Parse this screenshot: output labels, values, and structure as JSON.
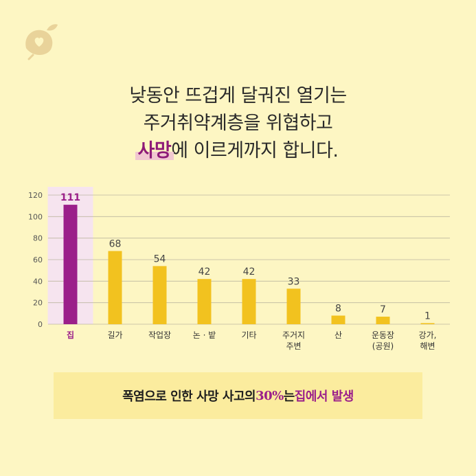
{
  "headline": {
    "line1": "낮동안 뜨겁게 달궈진 열기는",
    "line2": "주거취약계층을 위협하고",
    "line3_highlight": "사망",
    "line3_rest": "에 이르게까지 합니다."
  },
  "summary": {
    "part1": "폭염으로 인한 사망 사고의 ",
    "percent": "30%",
    "part2": "는 ",
    "place": "집에서 발생"
  },
  "colors": {
    "background": "#fdf6c3",
    "bar_default": "#f2c21f",
    "bar_highlight": "#9b1f8a",
    "highlight_bg": "#f6e4ef",
    "grid": "#bdb7a0"
  },
  "chart_data": {
    "type": "bar",
    "categories": [
      "집",
      "길가",
      "작업장",
      "논 · 밭",
      "기타",
      "주거지\n주변",
      "산",
      "운동장\n(공원)",
      "강가,\n해변"
    ],
    "values": [
      111,
      68,
      54,
      42,
      42,
      33,
      8,
      7,
      1
    ],
    "highlight_index": 0,
    "ylim": [
      0,
      120
    ],
    "yticks": [
      0,
      20,
      40,
      60,
      80,
      100,
      120
    ],
    "grid": true,
    "title": "",
    "xlabel": "",
    "ylabel": ""
  }
}
